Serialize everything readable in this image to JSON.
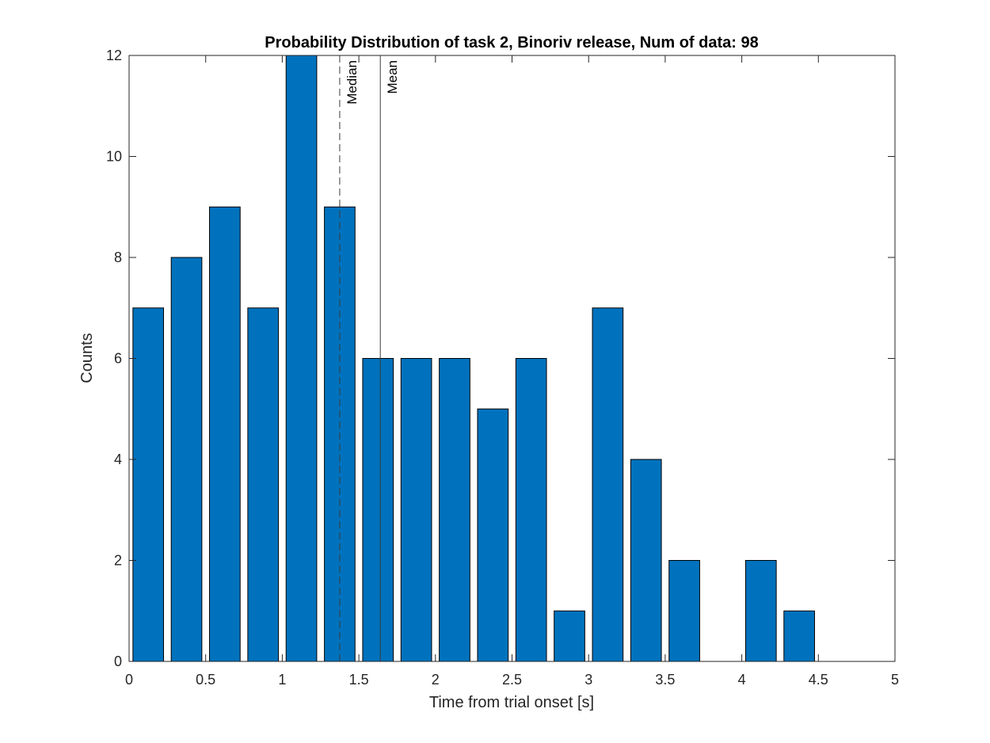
{
  "chart_data": {
    "type": "bar",
    "title": "Probability Distribution of task 2, Binoriv release, Num of data: 98",
    "xlabel": "Time from trial onset [s]",
    "ylabel": "Counts",
    "xlim": [
      0,
      5
    ],
    "ylim": [
      0,
      12
    ],
    "xticks": [
      "0",
      "0.5",
      "1",
      "1.5",
      "2",
      "2.5",
      "3",
      "3.5",
      "4",
      "4.5",
      "5"
    ],
    "yticks": [
      "0",
      "2",
      "4",
      "6",
      "8",
      "10",
      "12"
    ],
    "bin_width": 0.25,
    "bin_starts": [
      0,
      0.25,
      0.5,
      0.75,
      1.0,
      1.25,
      1.5,
      1.75,
      2.0,
      2.25,
      2.5,
      2.75,
      3.0,
      3.25,
      3.5,
      3.75,
      4.0,
      4.25,
      4.5,
      4.75
    ],
    "values": [
      7,
      8,
      9,
      7,
      12,
      9,
      6,
      6,
      6,
      5,
      6,
      1,
      7,
      4,
      2,
      0,
      2,
      1,
      0,
      0
    ],
    "bar_color": "#0072BD",
    "reference_lines": [
      {
        "label": "Median",
        "x": 1.375,
        "style": "dashed"
      },
      {
        "label": "Mean",
        "x": 1.64,
        "style": "solid"
      }
    ],
    "grid": false,
    "legend": "none"
  }
}
